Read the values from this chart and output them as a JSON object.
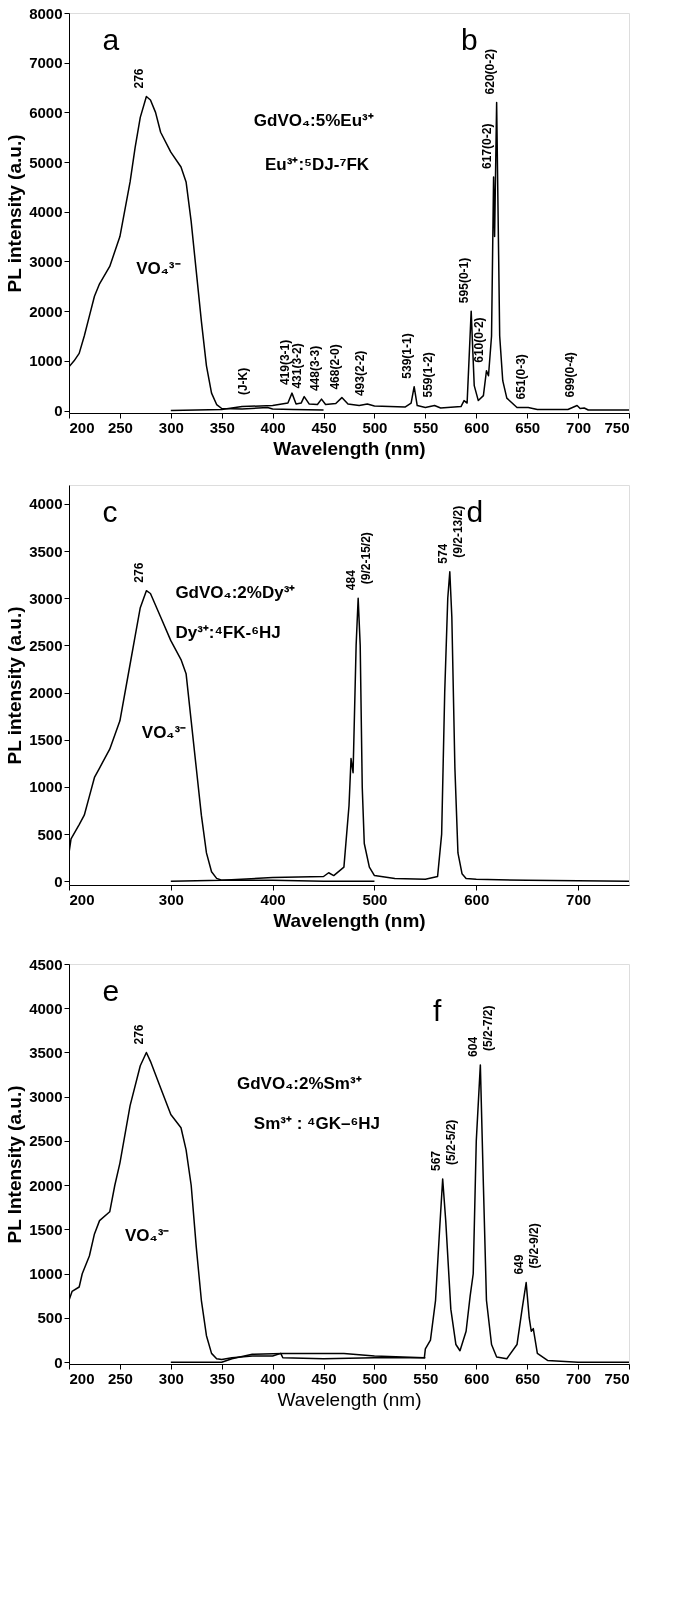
{
  "chart_data": [
    {
      "type": "line",
      "xlabel": "Wavelength (nm)",
      "ylabel": "PL intensity (a.u.)",
      "xlim": [
        200,
        750
      ],
      "ylim": [
        -50,
        8000
      ],
      "xticks": [
        200,
        250,
        300,
        350,
        400,
        450,
        500,
        550,
        600,
        650,
        700,
        750
      ],
      "yticks": [
        0,
        1000,
        2000,
        3000,
        4000,
        5000,
        6000,
        7000,
        8000
      ],
      "grid": false,
      "series": [
        {
          "color": "#000000",
          "x": [
            200,
            205,
            210,
            215,
            220,
            225,
            230,
            240,
            250,
            260,
            265,
            270,
            276,
            280,
            285,
            290,
            300,
            310,
            315,
            320,
            325,
            330,
            335,
            340,
            345,
            350,
            370,
            395,
            400,
            420,
            450
          ],
          "values": [
            880,
            1000,
            1150,
            1500,
            1900,
            2300,
            2550,
            2900,
            3500,
            4600,
            5300,
            5900,
            6320,
            6250,
            6000,
            5600,
            5200,
            4900,
            4600,
            3800,
            2800,
            1800,
            900,
            350,
            120,
            40,
            30,
            60,
            30,
            20,
            10
          ]
        },
        {
          "color": "#000000",
          "x": [
            300,
            350,
            370,
            400,
            415,
            419,
            423,
            428,
            431,
            436,
            444,
            448,
            452,
            462,
            468,
            474,
            485,
            493,
            500,
            530,
            536,
            539,
            542,
            550,
            559,
            565,
            585,
            588,
            591,
            595,
            598,
            602,
            607,
            610,
            612,
            615,
            617,
            618,
            620,
            623,
            626,
            630,
            640,
            651,
            660,
            690,
            699,
            702,
            706,
            710,
            750
          ],
          "values": [
            0,
            20,
            80,
            100,
            150,
            350,
            130,
            150,
            280,
            130,
            120,
            230,
            120,
            140,
            260,
            130,
            100,
            130,
            90,
            70,
            150,
            480,
            100,
            60,
            100,
            50,
            80,
            200,
            150,
            2000,
            500,
            200,
            300,
            800,
            700,
            1500,
            4700,
            3500,
            6200,
            1500,
            600,
            250,
            60,
            60,
            20,
            20,
            100,
            40,
            50,
            10,
            10
          ]
        }
      ],
      "annotations": [
        "a",
        "b",
        "GdVO₄:5%Eu³⁺",
        "Eu³⁺:⁵DJ-⁷FK",
        "VO₄³⁻",
        {
          "text": "276",
          "x": 276,
          "y": 6320
        },
        {
          "text": "(J-K)",
          "x": 378,
          "y": 150
        },
        {
          "text": "419(3-1)",
          "x": 419,
          "y": 350
        },
        {
          "text": "431(3-2)",
          "x": 431,
          "y": 280
        },
        {
          "text": "448(3-3)",
          "x": 448,
          "y": 230
        },
        {
          "text": "468(2-0)",
          "x": 468,
          "y": 260
        },
        {
          "text": "493(2-2)",
          "x": 493,
          "y": 130
        },
        {
          "text": "539(1-1)",
          "x": 539,
          "y": 480
        },
        {
          "text": "559(1-2)",
          "x": 559,
          "y": 100
        },
        {
          "text": "595(0-1)",
          "x": 595,
          "y": 2000
        },
        {
          "text": "610(0-2)",
          "x": 610,
          "y": 800
        },
        {
          "text": "617(0-2)",
          "x": 617,
          "y": 4700
        },
        {
          "text": "620(0-2)",
          "x": 620,
          "y": 6200
        },
        {
          "text": "651(0-3)",
          "x": 651,
          "y": 60
        },
        {
          "text": "699(0-4)",
          "x": 699,
          "y": 100
        }
      ]
    },
    {
      "type": "line",
      "xlabel": "Wavelength (nm)",
      "ylabel": "PL intensity (a.u.)",
      "xlim": [
        200,
        750
      ],
      "ylim": [
        -40,
        4200
      ],
      "xticks": [
        200,
        300,
        400,
        500,
        600,
        700
      ],
      "yticks": [
        0,
        500,
        1000,
        1500,
        2000,
        2500,
        3000,
        3500,
        4000
      ],
      "grid": false,
      "series": [
        {
          "color": "#000000",
          "x": [
            200,
            202,
            210,
            215,
            220,
            225,
            230,
            240,
            250,
            260,
            265,
            270,
            276,
            280,
            290,
            300,
            310,
            315,
            320,
            325,
            330,
            335,
            340,
            345,
            350,
            400,
            450,
            500
          ],
          "values": [
            300,
            450,
            600,
            700,
            900,
            1100,
            1200,
            1400,
            1700,
            2300,
            2600,
            2900,
            3080,
            3050,
            2800,
            2550,
            2350,
            2200,
            1700,
            1200,
            700,
            300,
            100,
            30,
            10,
            10,
            0,
            0
          ]
        },
        {
          "color": "#000000",
          "x": [
            300,
            350,
            400,
            450,
            455,
            460,
            470,
            475,
            477,
            479,
            482,
            484,
            486,
            488,
            490,
            495,
            500,
            520,
            550,
            562,
            566,
            569,
            572,
            574,
            576,
            579,
            582,
            586,
            590,
            600,
            650,
            750
          ],
          "values": [
            0,
            10,
            40,
            50,
            90,
            60,
            150,
            800,
            1300,
            1150,
            2500,
            3000,
            2500,
            1000,
            400,
            150,
            60,
            30,
            20,
            50,
            500,
            2000,
            3000,
            3280,
            2800,
            1200,
            300,
            80,
            30,
            20,
            10,
            0
          ]
        }
      ],
      "annotations": [
        "c",
        "d",
        "GdVO₄:2%Dy³⁺",
        "Dy³⁺:⁴FK-⁶HJ",
        "VO₄³⁻",
        {
          "text": "276",
          "x": 276,
          "y": 3080
        },
        {
          "text": "484",
          "x": 484,
          "y": 3000
        },
        {
          "text": "(9/2-15/2)",
          "x": 484,
          "y": 3000
        },
        {
          "text": "574",
          "x": 574,
          "y": 3280
        },
        {
          "text": "(9/2-13/2)",
          "x": 574,
          "y": 3280
        }
      ]
    },
    {
      "type": "line",
      "xlabel": "Wavelength (nm)",
      "ylabel": "PL Intensity (a.u.)",
      "xlim": [
        200,
        750
      ],
      "ylim": [
        -20,
        4500
      ],
      "xticks": [
        200,
        250,
        300,
        350,
        400,
        450,
        500,
        550,
        600,
        650,
        700,
        750
      ],
      "yticks": [
        0,
        500,
        1000,
        1500,
        2000,
        2500,
        3000,
        3500,
        4000,
        4500
      ],
      "grid": false,
      "series": [
        {
          "color": "#000000",
          "x": [
            200,
            203,
            210,
            213,
            220,
            225,
            230,
            240,
            245,
            250,
            260,
            270,
            276,
            280,
            290,
            300,
            310,
            315,
            320,
            325,
            330,
            335,
            340,
            345,
            350,
            360,
            380,
            400,
            408,
            410,
            450,
            500,
            550
          ],
          "values": [
            700,
            800,
            850,
            1000,
            1200,
            1450,
            1600,
            1700,
            2000,
            2250,
            2900,
            3350,
            3500,
            3400,
            3100,
            2800,
            2650,
            2400,
            2000,
            1300,
            700,
            300,
            100,
            40,
            30,
            50,
            70,
            70,
            100,
            50,
            40,
            50,
            50
          ]
        },
        {
          "color": "#000000",
          "x": [
            300,
            350,
            360,
            380,
            410,
            450,
            470,
            500,
            549,
            550,
            555,
            560,
            564,
            567,
            570,
            575,
            580,
            584,
            590,
            594,
            597,
            600,
            604,
            607,
            610,
            615,
            620,
            630,
            640,
            645,
            649,
            652,
            654,
            656,
            660,
            670,
            700,
            750
          ],
          "values": [
            0,
            0,
            40,
            90,
            100,
            100,
            100,
            70,
            50,
            150,
            250,
            700,
            1500,
            2070,
            1600,
            600,
            200,
            130,
            350,
            750,
            1000,
            2500,
            3360,
            2000,
            700,
            200,
            60,
            40,
            200,
            600,
            900,
            500,
            350,
            380,
            100,
            20,
            0,
            0
          ]
        }
      ],
      "annotations": [
        "e",
        "f",
        "GdVO₄:2%Sm³⁺",
        "Sm³⁺ : ⁴GK–⁶HJ",
        "VO₄³⁻",
        {
          "text": "276",
          "x": 276,
          "y": 3500
        },
        {
          "text": "567",
          "x": 567,
          "y": 2070
        },
        {
          "text": "(5/2-5/2)",
          "x": 567,
          "y": 2070
        },
        {
          "text": "604",
          "x": 604,
          "y": 3360
        },
        {
          "text": "(5/2-7/2)",
          "x": 604,
          "y": 3360
        },
        {
          "text": "649",
          "x": 649,
          "y": 900
        },
        {
          "text": "(5/2-9/2)",
          "x": 649,
          "y": 900
        }
      ]
    }
  ]
}
